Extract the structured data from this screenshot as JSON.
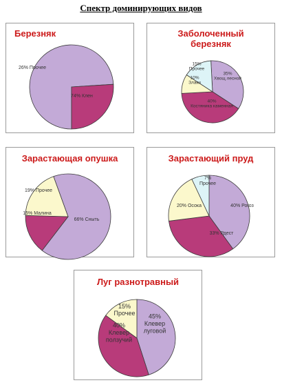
{
  "page": {
    "title": "Спектр доминирующих видов"
  },
  "colors": {
    "purple": "#c3aad7",
    "magenta": "#b83b7a",
    "cream": "#fbf8cc",
    "lightblue": "#ddf4f7",
    "title_red": "#cc1a1a"
  },
  "chart_data": [
    {
      "type": "pie",
      "title": "Березняк",
      "slices": [
        {
          "label": "74% Клен",
          "value": 74,
          "color": "#c3aad7"
        },
        {
          "label": "26% Прочее",
          "value": 26,
          "color": "#b83b7a"
        }
      ]
    },
    {
      "type": "pie",
      "title": "Заболоченный березняк",
      "slices": [
        {
          "label": "35% Хвощ лесной",
          "value": 35,
          "color": "#c3aad7"
        },
        {
          "label": "40% Костяника каменная",
          "value": 40,
          "color": "#b83b7a"
        },
        {
          "label": "10% Злаки",
          "value": 10,
          "color": "#fbf8cc"
        },
        {
          "label": "15% Прочее",
          "value": 15,
          "color": "#ddf4f7"
        }
      ]
    },
    {
      "type": "pie",
      "title": "Зарастающая опушка",
      "slices": [
        {
          "label": "66% Сныть",
          "value": 66,
          "color": "#c3aad7"
        },
        {
          "label": "15% Малина",
          "value": 15,
          "color": "#b83b7a"
        },
        {
          "label": "19% Прочее",
          "value": 19,
          "color": "#fbf8cc"
        }
      ]
    },
    {
      "type": "pie",
      "title": "Зарастающий пруд",
      "slices": [
        {
          "label": "40% Рогоз",
          "value": 40,
          "color": "#c3aad7"
        },
        {
          "label": "33% Рдест",
          "value": 33,
          "color": "#b83b7a"
        },
        {
          "label": "20% Осока",
          "value": 20,
          "color": "#fbf8cc"
        },
        {
          "label": "7% Прочее",
          "value": 7,
          "color": "#ddf4f7"
        }
      ]
    },
    {
      "type": "pie",
      "title": "Луг разнотравный",
      "slices": [
        {
          "label": "45% Клевер луговой",
          "value": 45,
          "color": "#c3aad7"
        },
        {
          "label": "40% Клевер ползучий",
          "value": 40,
          "color": "#b83b7a"
        },
        {
          "label": "15% Прочее",
          "value": 15,
          "color": "#fbf8cc"
        }
      ]
    }
  ]
}
